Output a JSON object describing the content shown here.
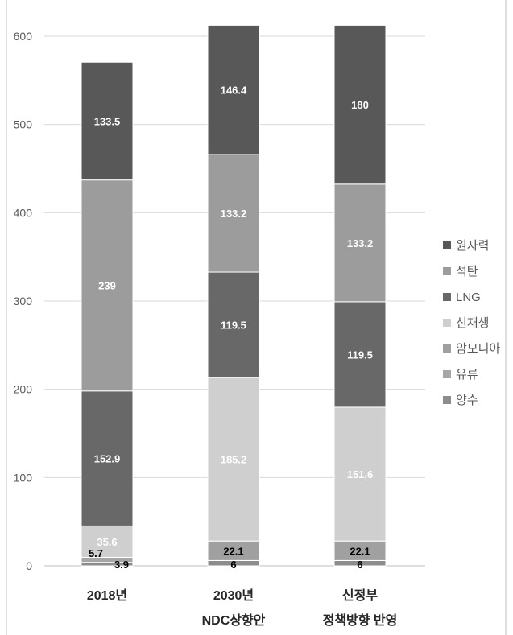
{
  "chart_data": {
    "type": "bar",
    "stacked": true,
    "categories": [
      [
        "2018년"
      ],
      [
        "2030년",
        "NDC상향안"
      ],
      [
        "신정부",
        "정책방향 반영"
      ]
    ],
    "series": [
      {
        "name": "양수",
        "values": [
          3.9,
          6,
          6
        ],
        "color": "#8c8c8c",
        "label_color": "#000000"
      },
      {
        "name": "유류",
        "values": [
          5.7,
          0,
          0
        ],
        "color": "#a6a6a6",
        "label_color": "#000000"
      },
      {
        "name": "암모니아",
        "values": [
          0,
          22.1,
          22.1
        ],
        "color": "#a0a0a0",
        "label_color": "#000000"
      },
      {
        "name": "신재생",
        "values": [
          35.6,
          185.2,
          151.6
        ],
        "color": "#cfcfcf",
        "label_color": "#ffffff"
      },
      {
        "name": "LNG",
        "values": [
          152.9,
          119.5,
          119.5
        ],
        "color": "#686868",
        "label_color": "#ffffff"
      },
      {
        "name": "석탄",
        "values": [
          239,
          133.2,
          133.2
        ],
        "color": "#9c9c9c",
        "label_color": "#ffffff"
      },
      {
        "name": "원자력",
        "values": [
          133.5,
          146.4,
          180
        ],
        "color": "#585858",
        "label_color": "#ffffff"
      }
    ],
    "legend_order": [
      "원자력",
      "석탄",
      "LNG",
      "신재생",
      "암모니아",
      "유류",
      "양수"
    ],
    "yticks": [
      0,
      100,
      200,
      300,
      400,
      500,
      600
    ],
    "ylim": [
      0,
      600
    ],
    "grid": true,
    "legend_position": "right"
  }
}
